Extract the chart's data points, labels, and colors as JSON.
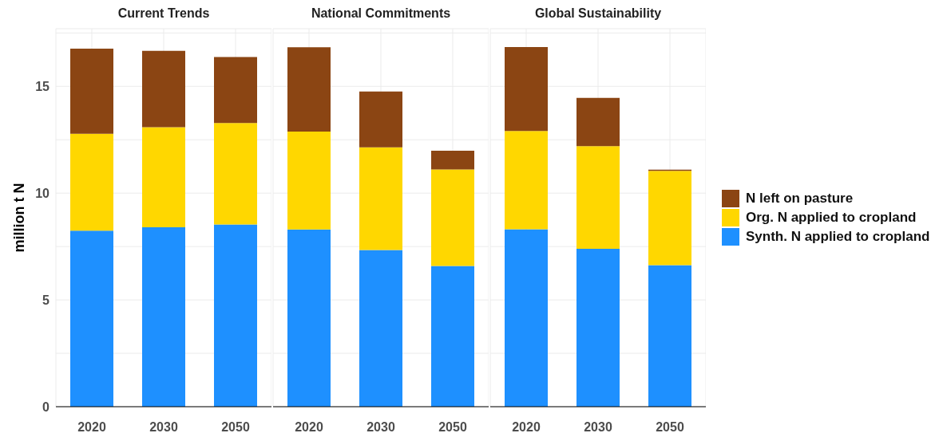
{
  "chart_data": [
    {
      "type": "bar",
      "title": "Current Trends",
      "ylabel": "million t N",
      "categories": [
        "2020",
        "2030",
        "2050"
      ],
      "stacked": true,
      "ylim": [
        0,
        17.7
      ],
      "yticks": [
        0,
        {
          "value": 2.5,
          "label": null
        },
        5,
        {
          "value": 7.5,
          "label": null
        },
        10,
        {
          "value": 12.5,
          "label": null
        },
        15,
        {
          "value": 17.5,
          "label": null
        }
      ],
      "grid": true,
      "legend": false,
      "series": [
        {
          "color": "#1e90ff",
          "values": [
            8.24,
            8.4,
            8.53
          ]
        },
        {
          "color": "#ffd700",
          "values": [
            4.54,
            4.69,
            4.75
          ]
        },
        {
          "color": "#8b4513",
          "values": [
            3.99,
            3.57,
            3.09
          ]
        }
      ]
    },
    {
      "type": "bar",
      "title": "National Commitments",
      "categories": [
        "2020",
        "2030",
        "2050"
      ],
      "stacked": true,
      "ylim": [
        0,
        17.7
      ],
      "yticks": [
        0,
        {
          "value": 2.5,
          "label": null
        },
        5,
        {
          "value": 7.5,
          "label": null
        },
        10,
        {
          "value": 12.5,
          "label": null
        },
        15,
        {
          "value": 17.5,
          "label": null
        }
      ],
      "grid": true,
      "legend": false,
      "tick_labels": "x",
      "series": [
        {
          "color": "#1e90ff",
          "values": [
            8.3,
            7.34,
            6.59
          ]
        },
        {
          "color": "#ffd700",
          "values": [
            4.58,
            4.81,
            4.52
          ]
        },
        {
          "color": "#8b4513",
          "values": [
            3.95,
            2.61,
            0.88
          ]
        }
      ]
    },
    {
      "type": "bar",
      "title": "Global Sustainability",
      "categories": [
        "2020",
        "2030",
        "2050"
      ],
      "stacked": true,
      "ylim": [
        0,
        17.7
      ],
      "yticks": [
        0,
        {
          "value": 2.5,
          "label": null
        },
        5,
        {
          "value": 7.5,
          "label": null
        },
        10,
        {
          "value": 12.5,
          "label": null
        },
        15,
        {
          "value": 17.5,
          "label": null
        }
      ],
      "grid": true,
      "legend": "right",
      "tick_labels": "x",
      "series": [
        {
          "name": "Synth. N applied to cropland",
          "color": "#1e90ff",
          "values": [
            8.31,
            7.39,
            6.63
          ]
        },
        {
          "name": "Org. N applied to cropland",
          "color": "#ffd700",
          "values": [
            4.6,
            4.81,
            4.41
          ]
        },
        {
          "name": "N left on pasture",
          "color": "#8b4513",
          "values": [
            3.93,
            2.26,
            0.06
          ]
        }
      ]
    }
  ]
}
